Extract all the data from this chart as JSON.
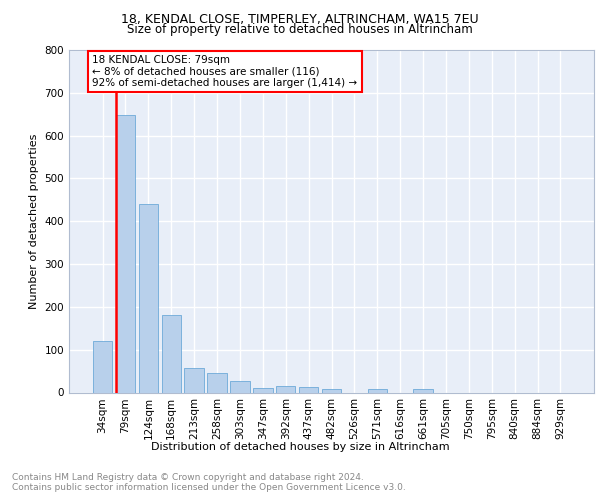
{
  "title1": "18, KENDAL CLOSE, TIMPERLEY, ALTRINCHAM, WA15 7EU",
  "title2": "Size of property relative to detached houses in Altrincham",
  "xlabel": "Distribution of detached houses by size in Altrincham",
  "ylabel": "Number of detached properties",
  "footer1": "Contains HM Land Registry data © Crown copyright and database right 2024.",
  "footer2": "Contains public sector information licensed under the Open Government Licence v3.0.",
  "annotation_line1": "18 KENDAL CLOSE: 79sqm",
  "annotation_line2": "← 8% of detached houses are smaller (116)",
  "annotation_line3": "92% of semi-detached houses are larger (1,414) →",
  "categories": [
    "34sqm",
    "79sqm",
    "124sqm",
    "168sqm",
    "213sqm",
    "258sqm",
    "303sqm",
    "347sqm",
    "392sqm",
    "437sqm",
    "482sqm",
    "526sqm",
    "571sqm",
    "616sqm",
    "661sqm",
    "705sqm",
    "750sqm",
    "795sqm",
    "840sqm",
    "884sqm",
    "929sqm"
  ],
  "values": [
    120,
    648,
    440,
    180,
    58,
    45,
    27,
    10,
    15,
    12,
    8,
    0,
    8,
    0,
    8,
    0,
    0,
    0,
    0,
    0,
    0
  ],
  "highlight_index": 1,
  "bar_color": "#b8d0eb",
  "bar_edge_color": "#5a9fd4",
  "annotation_box_bg": "white",
  "annotation_box_edge": "red",
  "background_color": "#e8eef8",
  "grid_color": "white",
  "ylim": [
    0,
    800
  ],
  "yticks": [
    0,
    100,
    200,
    300,
    400,
    500,
    600,
    700,
    800
  ],
  "title1_fontsize": 9,
  "title2_fontsize": 8.5,
  "ylabel_fontsize": 8,
  "xlabel_fontsize": 8,
  "tick_fontsize": 7.5,
  "footer_fontsize": 6.5,
  "annotation_fontsize": 7.5
}
